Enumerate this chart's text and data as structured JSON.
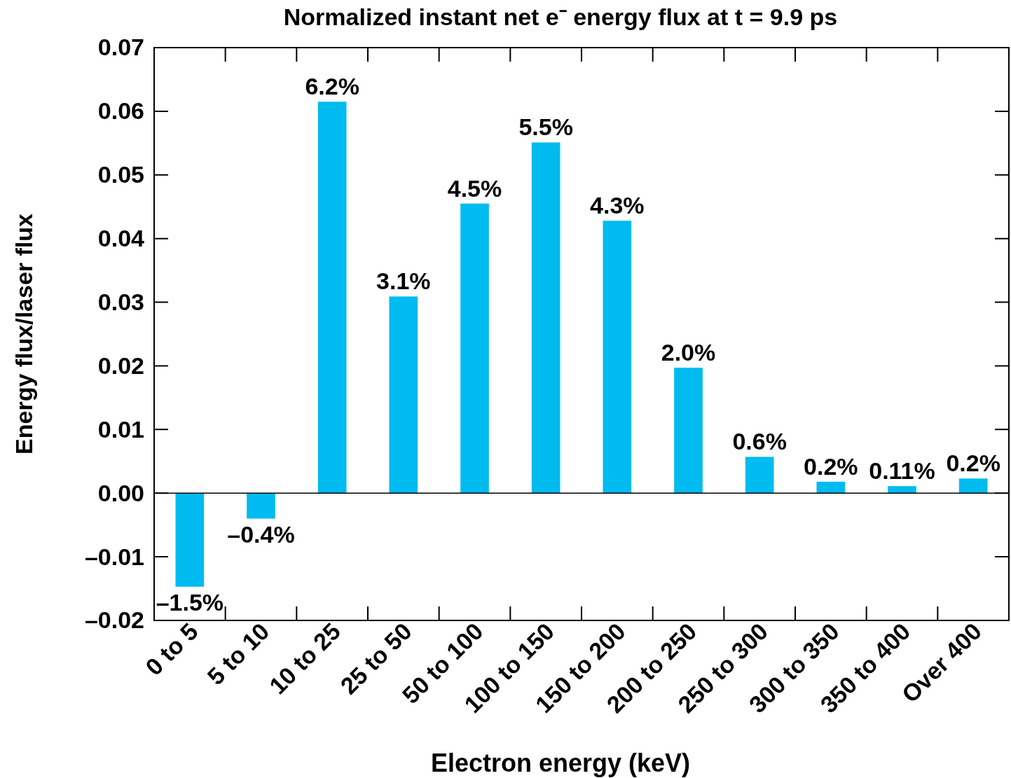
{
  "chart_data": {
    "type": "bar",
    "title": "Normalized instant net e⁻ energy flux at t = 9.9 ps",
    "xlabel": "Electron energy (keV)",
    "ylabel": "Energy flux/laser flux",
    "categories": [
      "0 to 5",
      "5 to 10",
      "10 to 25",
      "25 to 50",
      "50 to 100",
      "100 to 150",
      "150 to 200",
      "200 to 250",
      "250 to 300",
      "300 to 350",
      "350 to 400",
      "Over 400"
    ],
    "values": [
      -0.0147,
      -0.004,
      0.0615,
      0.0309,
      0.0455,
      0.0551,
      0.0428,
      0.0197,
      0.0057,
      0.0018,
      0.0011,
      0.0023
    ],
    "value_labels": [
      "–1.5%",
      "–0.4%",
      "6.2%",
      "3.1%",
      "4.5%",
      "5.5%",
      "4.3%",
      "2.0%",
      "0.6%",
      "0.2%",
      "0.11%",
      "0.2%"
    ],
    "color": "#00bbf0",
    "ylim": [
      -0.02,
      0.07
    ],
    "yticks": [
      {
        "value": -0.02,
        "label": "–0.02"
      },
      {
        "value": -0.01,
        "label": "–0.01"
      },
      {
        "value": 0,
        "label": "0.00"
      },
      0.01,
      0.02,
      0.03,
      0.04,
      0.05,
      0.06,
      0.07
    ]
  }
}
